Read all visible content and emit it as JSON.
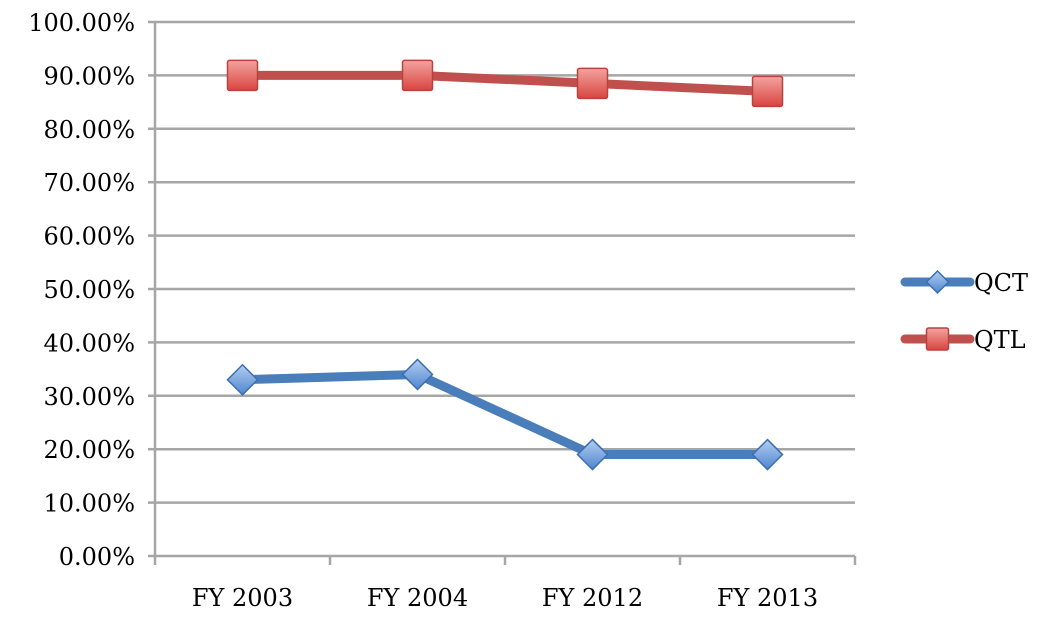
{
  "chart_data": {
    "type": "line",
    "title": "",
    "xlabel": "",
    "ylabel": "",
    "categories": [
      "FY 2003",
      "FY 2004",
      "FY 2012",
      "FY 2013"
    ],
    "y_ticks": [
      "0.00%",
      "10.00%",
      "20.00%",
      "30.00%",
      "40.00%",
      "50.00%",
      "60.00%",
      "70.00%",
      "80.00%",
      "90.00%",
      "100.00%"
    ],
    "ylim": [
      0,
      1
    ],
    "grid": "horizontal",
    "legend_position": "right",
    "series": [
      {
        "name": "QCT",
        "values": [
          0.33,
          0.34,
          0.19,
          0.19
        ],
        "color": "#4a7ebb",
        "marker": "diamond",
        "marker_fill": "#7fa8e0"
      },
      {
        "name": "QTL",
        "values": [
          0.9,
          0.9,
          0.885,
          0.87
        ],
        "color": "#c0504d",
        "marker": "square",
        "marker_fill": "#e66b68"
      }
    ]
  }
}
